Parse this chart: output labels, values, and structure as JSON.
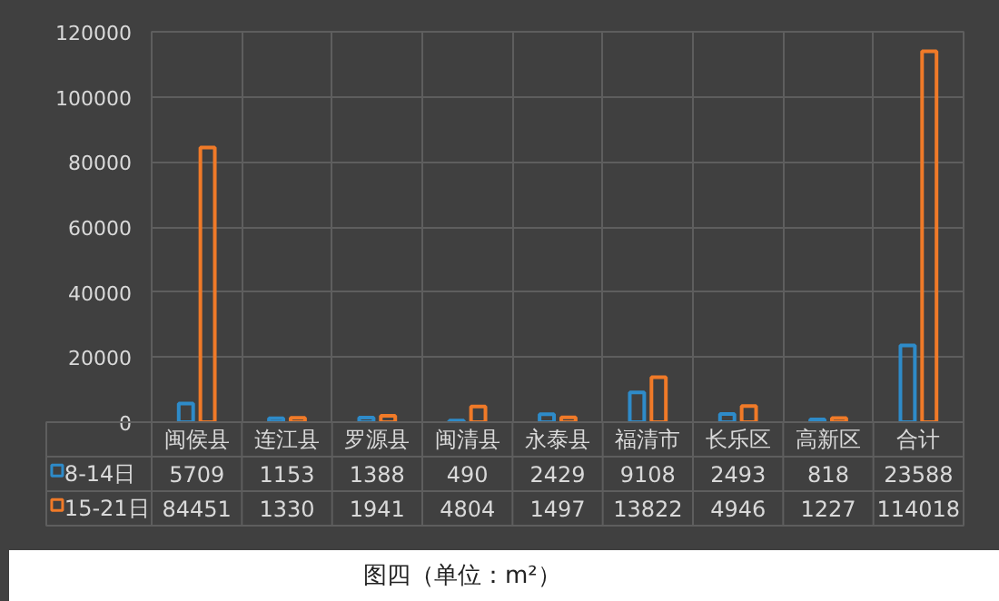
{
  "chart_data": {
    "type": "bar",
    "title": "图四（单位：m²）",
    "categories": [
      "闽侯县",
      "连江县",
      "罗源县",
      "闽清县",
      "永泰县",
      "福清市",
      "长乐区",
      "高新区",
      "合计"
    ],
    "series": [
      {
        "name": "8-14日",
        "color": "#2e8bc9",
        "values": [
          5709,
          1153,
          1388,
          490,
          2429,
          9108,
          2493,
          818,
          23588
        ]
      },
      {
        "name": "15-21日",
        "color": "#f07a28",
        "values": [
          84451,
          1330,
          1941,
          4804,
          1497,
          13822,
          4946,
          1227,
          114018
        ]
      }
    ],
    "ylim": [
      0,
      120000
    ],
    "yticks": [
      0,
      20000,
      40000,
      60000,
      80000,
      100000,
      120000
    ],
    "grid": true,
    "legend": "bottom",
    "data_labels": true
  }
}
